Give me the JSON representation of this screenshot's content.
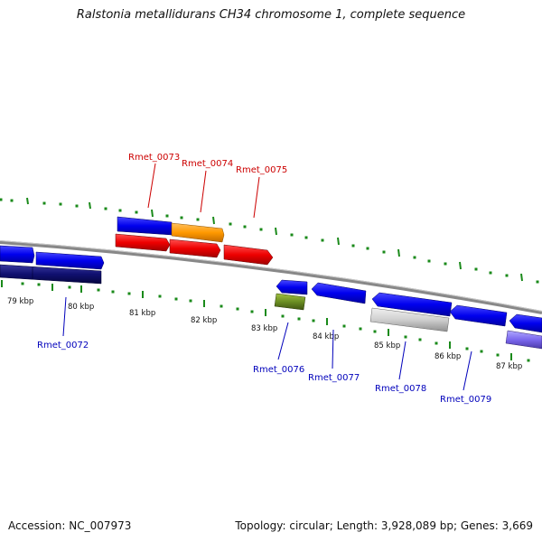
{
  "title": "Ralstonia metallidurans CH34 chromosome 1, complete sequence",
  "footer": {
    "accession": "Accession: NC_007973",
    "summary": "Topology: circular; Length: 3,928,089 bp; Genes: 3,669"
  },
  "ticks": [
    "79 kbp",
    "80 kbp",
    "81 kbp",
    "82 kbp",
    "83 kbp",
    "84 kbp",
    "85 kbp",
    "86 kbp",
    "87 kbp"
  ],
  "labels": {
    "forward": [
      "Rmet_0073",
      "Rmet_0074",
      "Rmet_0075"
    ],
    "reverse": [
      "Rmet_0072",
      "Rmet_0076",
      "Rmet_0077",
      "Rmet_0078",
      "Rmet_0079"
    ]
  },
  "colors": {
    "forward_label": "#cc0000",
    "reverse_label": "#0000bb",
    "tick": "#1a8a1a",
    "backbone": "#888888"
  }
}
